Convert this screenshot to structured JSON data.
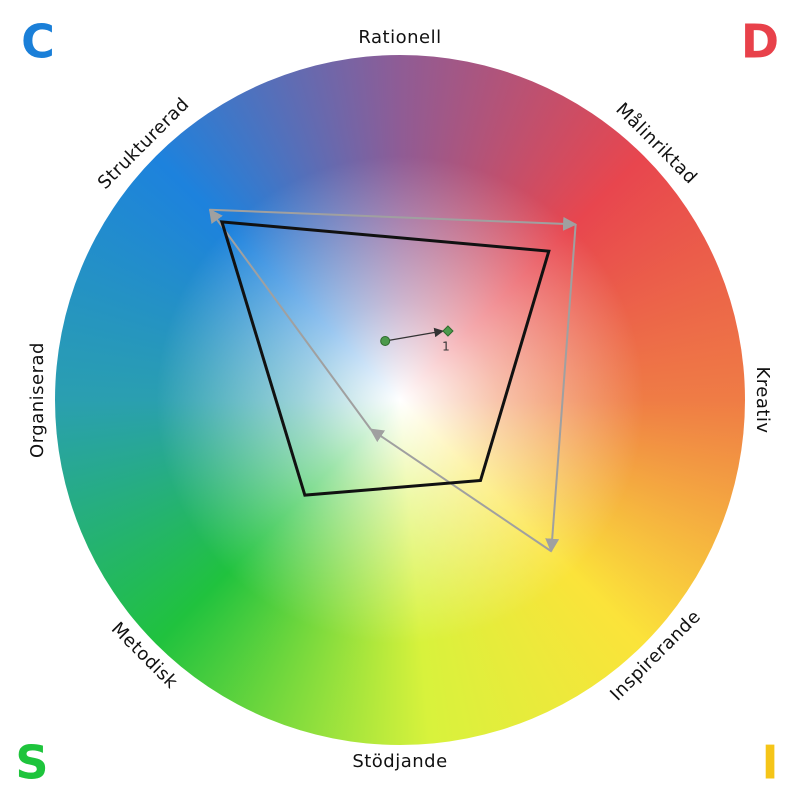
{
  "chart_data": {
    "type": "radar",
    "categories": [
      "Rationell",
      "Målinriktad",
      "Kreativ",
      "Inspirerande",
      "Stödjande",
      "Metodisk",
      "Organiserad",
      "Strukturerad"
    ],
    "rlim": [
      0,
      1
    ],
    "series": [
      {
        "color": "#a0a0a0",
        "arrows": true,
        "values": [
          null,
          0.72,
          null,
          0.62,
          null,
          0.12,
          null,
          0.78
        ]
      },
      {
        "color": "#111111",
        "arrows": false,
        "values": [
          null,
          0.61,
          null,
          0.33,
          null,
          0.39,
          null,
          0.73
        ]
      }
    ],
    "marker": {
      "from": [
        -0.043,
        0.171
      ],
      "to": [
        0.139,
        0.2
      ],
      "label": "1",
      "color": "#4c9a4c"
    },
    "corners": [
      {
        "label": "C",
        "color": "#1a7fd8"
      },
      {
        "label": "D",
        "color": "#e8414a"
      },
      {
        "label": "S",
        "color": "#1ec43c"
      },
      {
        "label": "I",
        "color": "#f5c518"
      }
    ]
  }
}
